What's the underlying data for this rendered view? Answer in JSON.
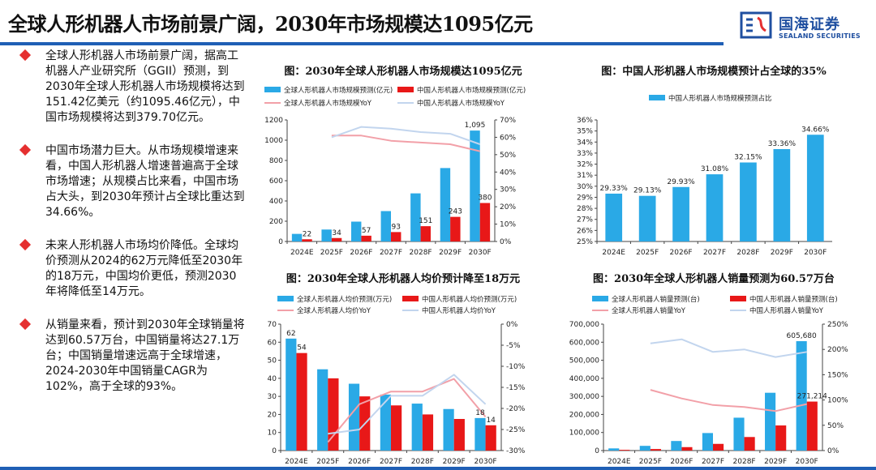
{
  "header": {
    "title": "全球人形机器人市场前景广阔，2030年市场规模达1095亿元",
    "logo_cn": "国海证券",
    "logo_en": "SEALAND SECURITIES"
  },
  "bullets": [
    {
      "text": "全球人形机器人市场前景广阔，据高工机器人产业研究所（GGII）预测，到2030年全球人形机器人市场规模将达到151.42亿美元（约1095.46亿元），中国市场规模将达到379.70亿元。"
    },
    {
      "text": "中国市场潜力巨大。从市场规模增速来看，中国人形机器人增速普遍高于全球市场增速；从规模占比来看，中国市场占大头，到2030年预计占全球比重达到34.66%。"
    },
    {
      "text": "未来人形机器人市场均价降低。全球均价预测从2024的62万元降低至2030年的18万元，中国均价更低，预测2030年将降低至14万元。"
    },
    {
      "text": "从销量来看，预计到2030年全球销量将达到60.57万台，中国销量将达27.1万台；中国销量增速远高于全球增速，2024-2030年中国销量CAGR为102%，高于全球的93%。"
    }
  ],
  "colors": {
    "blue": "#2aa9e6",
    "red": "#e81818",
    "pink": "#f2a0a8",
    "lightblue": "#c2d5ee",
    "brand": "#1f5fb5"
  },
  "chart_data": [
    {
      "type": "bar",
      "title": "图：2030年全球人形机器人市场规模达1095亿元",
      "categories": [
        "2024E",
        "2025F",
        "2026F",
        "2027F",
        "2028F",
        "2029F",
        "2030F"
      ],
      "series": [
        {
          "name": "全球人形机器人市场规模预测(亿元)",
          "kind": "bar",
          "axis": "left",
          "values": [
            75,
            118,
            196,
            300,
            475,
            725,
            1095
          ]
        },
        {
          "name": "中国人形机器人市场规模预测(亿元)",
          "kind": "bar",
          "axis": "left",
          "values": [
            22,
            34,
            57,
            93,
            151,
            243,
            380
          ]
        },
        {
          "name": "全球人形机器人市场规模YoY",
          "kind": "line",
          "axis": "right",
          "values": [
            null,
            61,
            61,
            58,
            57,
            56,
            52
          ]
        },
        {
          "name": "中国人形机器人市场规模YoY",
          "kind": "line",
          "axis": "right",
          "values": [
            null,
            60,
            66,
            65,
            63,
            62,
            56
          ]
        }
      ],
      "data_labels": [
        {
          "i": 0,
          "s": 1,
          "text": "22"
        },
        {
          "i": 1,
          "s": 1,
          "text": "34"
        },
        {
          "i": 2,
          "s": 1,
          "text": "57"
        },
        {
          "i": 3,
          "s": 1,
          "text": "93"
        },
        {
          "i": 4,
          "s": 1,
          "text": "151"
        },
        {
          "i": 5,
          "s": 1,
          "text": "243"
        },
        {
          "i": 6,
          "s": 1,
          "text": "380"
        },
        {
          "i": 6,
          "s": 0,
          "text": "1,095"
        }
      ],
      "ylim": [
        0,
        1200
      ],
      "yticks": [
        0,
        200,
        400,
        600,
        800,
        1000,
        1200
      ],
      "y2lim": [
        0,
        70
      ],
      "y2ticks": [
        "0%",
        "10%",
        "20%",
        "30%",
        "40%",
        "50%",
        "60%",
        "70%"
      ]
    },
    {
      "type": "bar",
      "title": "图：中国人形机器人市场规模预计占全球的35%",
      "categories": [
        "2024E",
        "2025F",
        "2026F",
        "2027F",
        "2028F",
        "2029F",
        "2030F"
      ],
      "series": [
        {
          "name": "中国人形机器人市场规模预测占比",
          "kind": "bar",
          "axis": "left",
          "values": [
            29.33,
            29.13,
            29.93,
            31.08,
            32.15,
            33.36,
            34.66
          ]
        }
      ],
      "data_labels": [
        {
          "i": 0,
          "s": 0,
          "text": "29.33%"
        },
        {
          "i": 1,
          "s": 0,
          "text": "29.13%"
        },
        {
          "i": 2,
          "s": 0,
          "text": "29.93%"
        },
        {
          "i": 3,
          "s": 0,
          "text": "31.08%"
        },
        {
          "i": 4,
          "s": 0,
          "text": "32.15%"
        },
        {
          "i": 5,
          "s": 0,
          "text": "33.36%"
        },
        {
          "i": 6,
          "s": 0,
          "text": "34.66%"
        }
      ],
      "ylim": [
        25,
        36
      ],
      "yticks": [
        "25%",
        "26%",
        "27%",
        "28%",
        "29%",
        "30%",
        "31%",
        "32%",
        "33%",
        "34%",
        "35%",
        "36%"
      ]
    },
    {
      "type": "bar",
      "title": "图：2030年全球人形机器人均价预计降至18万元",
      "categories": [
        "2024E",
        "2025F",
        "2026F",
        "2027F",
        "2028F",
        "2029F",
        "2030F"
      ],
      "series": [
        {
          "name": "全球人形机器人均价预测(万元)",
          "kind": "bar",
          "axis": "left",
          "values": [
            62,
            45,
            37,
            31,
            26,
            23,
            18
          ]
        },
        {
          "name": "中国人形机器人均价预测(万元)",
          "kind": "bar",
          "axis": "left",
          "values": [
            54,
            40,
            30,
            25,
            20,
            17.5,
            14
          ]
        },
        {
          "name": "全球人形机器人均价YoY",
          "kind": "line",
          "axis": "right",
          "values": [
            null,
            -28,
            -19,
            -16,
            -16,
            -13,
            -22
          ]
        },
        {
          "name": "中国人形机器人均价YoY",
          "kind": "line",
          "axis": "right",
          "values": [
            null,
            -26,
            -25,
            -17,
            -17,
            -12,
            -19
          ]
        }
      ],
      "data_labels": [
        {
          "i": 0,
          "s": 0,
          "text": "62"
        },
        {
          "i": 0,
          "s": 1,
          "text": "54"
        },
        {
          "i": 6,
          "s": 0,
          "text": "18"
        },
        {
          "i": 6,
          "s": 1,
          "text": "14"
        }
      ],
      "ylim": [
        0,
        70
      ],
      "yticks": [
        0,
        10,
        20,
        30,
        40,
        50,
        60,
        70
      ],
      "y2lim": [
        -30,
        0
      ],
      "y2ticks": [
        "-30%",
        "-25%",
        "-20%",
        "-15%",
        "-10%",
        "-5%",
        "0%"
      ]
    },
    {
      "type": "bar",
      "title": "图：2030年全球人形机器人销量预测为60.57万台",
      "categories": [
        "2024E",
        "2025F",
        "2026F",
        "2027F",
        "2028F",
        "2029F",
        "2030F"
      ],
      "series": [
        {
          "name": "全球人形机器人销量预测(台)",
          "kind": "bar",
          "axis": "left",
          "values": [
            12000,
            26000,
            53000,
            97000,
            182000,
            320000,
            605680
          ]
        },
        {
          "name": "中国人形机器人销量预测(台)",
          "kind": "bar",
          "axis": "left",
          "values": [
            4000,
            8500,
            19000,
            37000,
            75000,
            139000,
            271214
          ]
        },
        {
          "name": "全球人形机器人销量YoY",
          "kind": "line",
          "axis": "right",
          "values": [
            null,
            120,
            103,
            90,
            86,
            78,
            92
          ]
        },
        {
          "name": "中国人形机器人销量YoY",
          "kind": "line",
          "axis": "right",
          "values": [
            null,
            212,
            220,
            195,
            200,
            185,
            195
          ]
        }
      ],
      "data_labels": [
        {
          "i": 6,
          "s": 0,
          "text": "605,680"
        },
        {
          "i": 6,
          "s": 1,
          "text": "271,214"
        }
      ],
      "ylim": [
        0,
        700000
      ],
      "yticks": [
        "0",
        "100,000",
        "200,000",
        "300,000",
        "400,000",
        "500,000",
        "600,000",
        "700,000"
      ],
      "y2lim": [
        0,
        250
      ],
      "y2ticks": [
        "0%",
        "50%",
        "100%",
        "150%",
        "200%",
        "250%"
      ]
    }
  ]
}
